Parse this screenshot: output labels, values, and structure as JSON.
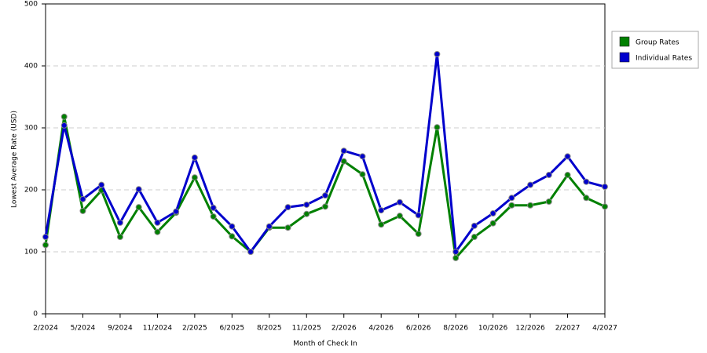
{
  "chart_data": {
    "type": "line",
    "x_label": "Month of Check In",
    "y_label": "Lowest Average Rate (USD)",
    "categories": [
      "2/2024",
      null,
      "5/2024",
      null,
      "9/2024",
      null,
      "11/2024",
      null,
      "2/2025",
      null,
      "6/2025",
      null,
      "8/2025",
      null,
      "11/2025",
      null,
      "2/2026",
      null,
      "4/2026",
      null,
      "6/2026",
      null,
      "8/2026",
      null,
      "10/2026",
      null,
      "12/2026",
      null,
      "2/2027",
      null,
      "4/2027"
    ],
    "series": [
      {
        "name": "Group Rates",
        "color": "#008000",
        "values": [
          111,
          318,
          166,
          199,
          124,
          172,
          132,
          163,
          220,
          157,
          125,
          100,
          139,
          139,
          161,
          173,
          246,
          225,
          144,
          158,
          129,
          301,
          90,
          124,
          146,
          175,
          175,
          181,
          224,
          187,
          173
        ]
      },
      {
        "name": "Individual Rates",
        "color": "#0000cc",
        "values": [
          124,
          304,
          185,
          208,
          147,
          201,
          147,
          165,
          252,
          171,
          141,
          100,
          141,
          172,
          176,
          191,
          263,
          254,
          167,
          180,
          159,
          419,
          100,
          142,
          162,
          187,
          208,
          224,
          254,
          213,
          205
        ]
      }
    ],
    "ylim": [
      0,
      500
    ],
    "yticks": [
      0,
      100,
      200,
      300,
      400,
      500
    ],
    "grid": true,
    "legend": "right"
  }
}
